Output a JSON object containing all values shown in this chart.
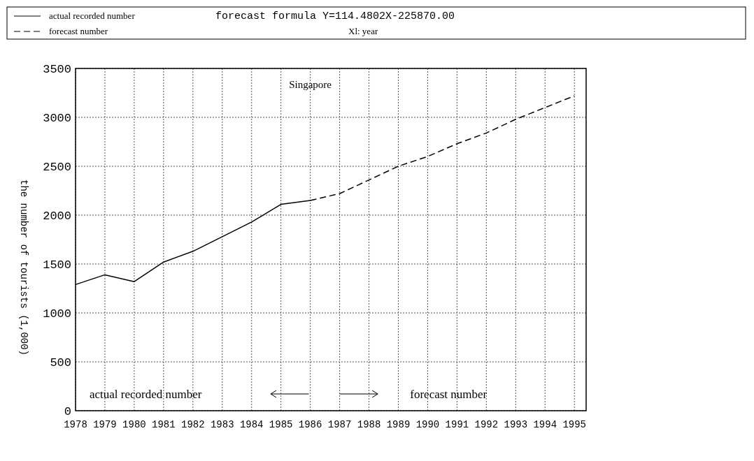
{
  "chart_data": {
    "type": "line",
    "title": "Singapore",
    "ylabel": "the number of tourists (1,000)",
    "annotations": [
      "forecast formula Y=114.4802X-225870.00",
      "Xl: year",
      "actual recorded number",
      "forecast number"
    ],
    "xlim": [
      1978,
      1995.4
    ],
    "xticks": [
      1978,
      1979,
      1980,
      1981,
      1982,
      1983,
      1984,
      1985,
      1986,
      1987,
      1988,
      1989,
      1990,
      1991,
      1992,
      1993,
      1994,
      1995
    ],
    "ylim": [
      0,
      3500
    ],
    "yticks": [
      0,
      500,
      1000,
      1500,
      2000,
      2500,
      3000,
      3500
    ],
    "grid": true,
    "legend": "top",
    "series": [
      {
        "name": "actual recorded number",
        "color": "#000000",
        "line_style": "solid",
        "x": [
          1978,
          1979,
          1980,
          1981,
          1982,
          1983,
          1984,
          1985,
          1986
        ],
        "values": [
          1290,
          1390,
          1320,
          1520,
          1630,
          1780,
          1930,
          2110,
          2150
        ]
      },
      {
        "name": "forecast number",
        "color": "#000000",
        "line_style": "dashed",
        "x": [
          1986,
          1987,
          1988,
          1989,
          1990,
          1991,
          1992,
          1993,
          1994,
          1995
        ],
        "values": [
          2150,
          2220,
          2360,
          2500,
          2600,
          2730,
          2840,
          2980,
          3100,
          3220
        ]
      }
    ]
  }
}
